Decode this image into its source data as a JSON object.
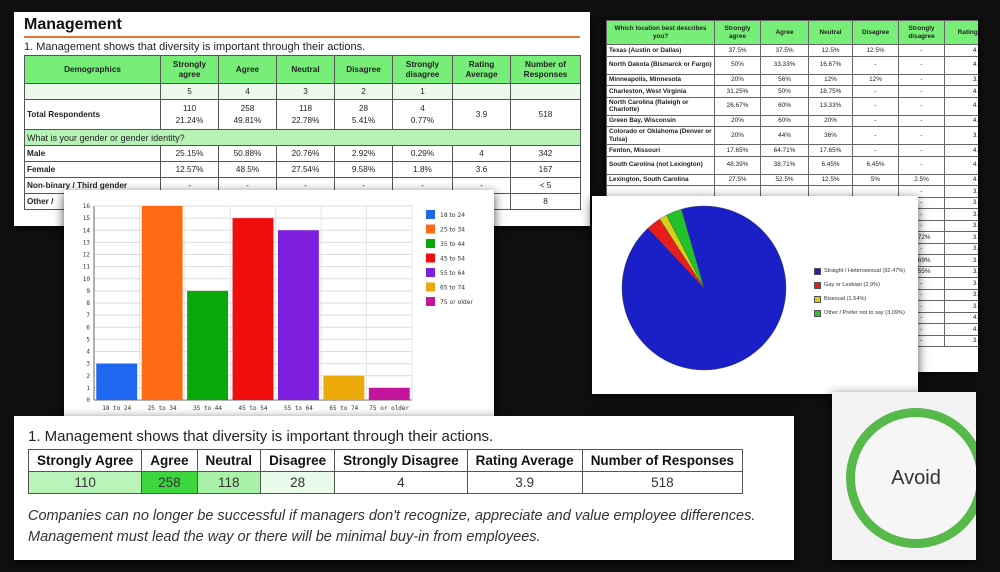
{
  "management": {
    "title": "Management",
    "question": "1. Management shows that diversity is important through their actions.",
    "headers": [
      "Demographics",
      "Strongly agree",
      "Agree",
      "Neutral",
      "Disagree",
      "Strongly disagree",
      "Rating Average",
      "Number of Responses"
    ],
    "weights": [
      "5",
      "4",
      "3",
      "2",
      "1"
    ],
    "total": {
      "label": "Total Respondents",
      "counts": [
        "110",
        "258",
        "118",
        "28",
        "4"
      ],
      "percents": [
        "21.24%",
        "49.81%",
        "22.78%",
        "5.41%",
        "0.77%"
      ],
      "rating": "3.9",
      "responses": "518"
    },
    "gender_question": "What is your gender or gender identity?",
    "rows": [
      {
        "label": "Male",
        "values": [
          "25.15%",
          "50.88%",
          "20.76%",
          "2.92%",
          "0.29%",
          "4",
          "342"
        ]
      },
      {
        "label": "Female",
        "values": [
          "12.57%",
          "48.5%",
          "27.54%",
          "9.58%",
          "1.8%",
          "3.6",
          "167"
        ]
      },
      {
        "label": "Non-binary / Third gender",
        "values": [
          "-",
          "-",
          "-",
          "-",
          "-",
          "-",
          "< 5"
        ]
      },
      {
        "label": "Other /",
        "values": [
          "",
          "",
          "",
          "",
          "",
          "",
          "8"
        ]
      }
    ]
  },
  "locations": {
    "headers": [
      "Which location best describes you?",
      "Strongly agree",
      "Agree",
      "Neutral",
      "Disagree",
      "Strongly disagree",
      "Rating Aver"
    ],
    "rows": [
      {
        "label": "Texas (Austin or Dallas)",
        "values": [
          "37.5%",
          "37.5%",
          "12.5%",
          "12.5%",
          "-",
          "4."
        ]
      },
      {
        "label": "North Dakota (Bismarck or Fargo)",
        "values": [
          "50%",
          "33.33%",
          "16.67%",
          "-",
          "-",
          "4."
        ]
      },
      {
        "label": "Minneapolis, Minnesota",
        "values": [
          "20%",
          "56%",
          "12%",
          "12%",
          "-",
          "3."
        ]
      },
      {
        "label": "Charleston, West Virginia",
        "values": [
          "31.25%",
          "50%",
          "18.75%",
          "-",
          "-",
          "4."
        ]
      },
      {
        "label": "North Carolina (Raleigh or Charlotte)",
        "values": [
          "26.67%",
          "60%",
          "13.33%",
          "-",
          "-",
          "4."
        ]
      },
      {
        "label": "Green Bay, Wisconsin",
        "values": [
          "20%",
          "60%",
          "20%",
          "-",
          "-",
          "4."
        ]
      },
      {
        "label": "Colorado or Oklahoma (Denver or Tulsa)",
        "values": [
          "20%",
          "44%",
          "36%",
          "-",
          "-",
          "3."
        ]
      },
      {
        "label": "Fenton, Missouri",
        "values": [
          "17.65%",
          "64.71%",
          "17.65%",
          "-",
          "-",
          "4."
        ]
      },
      {
        "label": "South Carolina (not Lexington)",
        "values": [
          "48.39%",
          "38.71%",
          "6.45%",
          "6.45%",
          "-",
          "4."
        ]
      },
      {
        "label": "Lexington, South Carolina",
        "values": [
          "27.5%",
          "52.5%",
          "12.5%",
          "5%",
          "2.5%",
          "4."
        ]
      }
    ],
    "hidden_rows": [
      {
        "values": [
          "-",
          "3."
        ]
      },
      {
        "values": [
          "-",
          "3."
        ]
      },
      {
        "values": [
          "-",
          "3."
        ]
      },
      {
        "values": [
          "-",
          "3."
        ]
      },
      {
        "values": [
          "0.72%",
          "3."
        ]
      },
      {
        "values": [
          "-",
          "3."
        ]
      },
      {
        "values": [
          "7.69%",
          "3."
        ]
      },
      {
        "values": [
          "4.55%",
          "3."
        ]
      },
      {
        "values": [
          "-",
          "3."
        ]
      },
      {
        "values": [
          "-",
          "3."
        ]
      },
      {
        "values": [
          "-",
          "3."
        ]
      },
      {
        "values": [
          "-",
          "4."
        ]
      },
      {
        "values": [
          "-",
          "4."
        ]
      },
      {
        "values": [
          "-",
          "3."
        ]
      }
    ]
  },
  "chart_data": [
    {
      "type": "bar",
      "title": "",
      "categories": [
        "18 to 24",
        "25 to 34",
        "35 to 44",
        "45 to 54",
        "55 to 64",
        "65 to 74",
        "75 or older"
      ],
      "values": [
        3,
        16,
        9,
        15,
        14,
        2,
        1
      ],
      "colors": [
        "#1f66f0",
        "#ff6a13",
        "#08a80a",
        "#f20d0d",
        "#7e1fe0",
        "#eba90a",
        "#c4149c"
      ],
      "y_ticks": [
        "0",
        "1",
        "2",
        "3",
        "4",
        "5",
        "6",
        "7",
        "8",
        "9",
        "10",
        "11",
        "12",
        "13",
        "14",
        "15",
        "16"
      ],
      "ylim": [
        0,
        16
      ],
      "legend": [
        "18 to 24",
        "25 to 34",
        "35 to 44",
        "45 to 54",
        "55 to 64",
        "65 to 74",
        "75 or older"
      ],
      "legend_position": "right",
      "grid": true
    },
    {
      "type": "pie",
      "labels": [
        "Straight / Heterosexual (92.47%)",
        "Gay or Lesbian (2.9%)",
        "Bisexual (1.54%)",
        "Other / Prefer not to say (3.09%)"
      ],
      "values": [
        92.47,
        2.9,
        1.54,
        3.09
      ],
      "colors": [
        "#1a1fc8",
        "#e81c1c",
        "#d4d01a",
        "#22c22a"
      ],
      "legend_position": "right"
    }
  ],
  "summary": {
    "question": "1. Management shows that diversity is important through their actions.",
    "headers": [
      "Strongly Agree",
      "Agree",
      "Neutral",
      "Disagree",
      "Strongly Disagree",
      "Rating Average",
      "Number of Responses"
    ],
    "values": [
      "110",
      "258",
      "118",
      "28",
      "4",
      "3.9",
      "518"
    ],
    "note": "Companies can no longer be successful if managers don't recognize, appreciate and value employee differences. Management must lead the way or there will be minimal buy-in from employees."
  },
  "badge": {
    "label": "Avoid",
    "ring_color": "#56b94a"
  }
}
